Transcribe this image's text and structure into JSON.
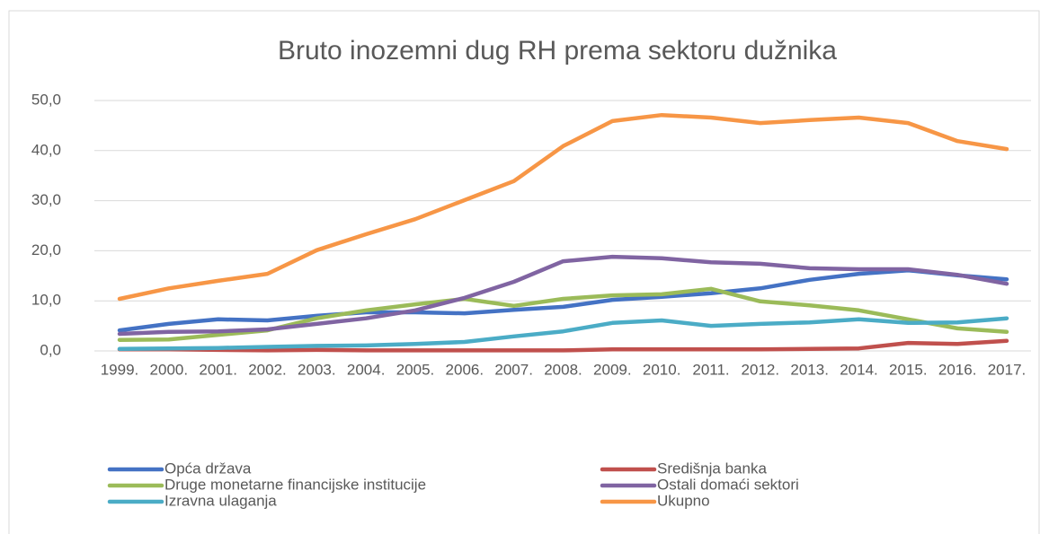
{
  "chart_data": {
    "type": "line",
    "title": "Bruto inozemni dug RH prema sektoru dužnika",
    "categories": [
      "1999.",
      "2000.",
      "2001.",
      "2002.",
      "2003.",
      "2004.",
      "2005.",
      "2006.",
      "2007.",
      "2008.",
      "2009.",
      "2010.",
      "2011.",
      "2012.",
      "2013.",
      "2014.",
      "2015.",
      "2016.",
      "2017."
    ],
    "ylim": [
      0,
      50
    ],
    "yticks": [
      {
        "value": 0,
        "label": "0,0"
      },
      {
        "value": 10,
        "label": "10,0"
      },
      {
        "value": 20,
        "label": "20,0"
      },
      {
        "value": 30,
        "label": "30,0"
      },
      {
        "value": 40,
        "label": "40,0"
      },
      {
        "value": 50,
        "label": "50,0"
      }
    ],
    "grid": true,
    "legend": "bottom",
    "series": [
      {
        "name": "Opća država",
        "color": "#4472c4",
        "values": [
          4.1,
          5.4,
          6.3,
          6.1,
          7.0,
          7.7,
          7.7,
          7.5,
          8.2,
          8.8,
          10.2,
          10.8,
          11.5,
          12.5,
          14.2,
          15.4,
          16.1,
          15.1,
          14.3
        ]
      },
      {
        "name": "Središnja banka",
        "color": "#c0504d",
        "values": [
          0.3,
          0.3,
          0.2,
          0.1,
          0.2,
          0.1,
          0.1,
          0.1,
          0.1,
          0.1,
          0.3,
          0.3,
          0.3,
          0.3,
          0.4,
          0.5,
          1.6,
          1.4,
          2.0
        ]
      },
      {
        "name": "Druge monetarne financijske institucije",
        "color": "#9bbb59",
        "values": [
          2.2,
          2.3,
          3.2,
          4.1,
          6.5,
          8.1,
          9.3,
          10.4,
          9.0,
          10.4,
          11.1,
          11.3,
          12.4,
          9.9,
          9.1,
          8.1,
          6.3,
          4.5,
          3.8
        ]
      },
      {
        "name": "Ostali domaći sektori",
        "color": "#8064a2",
        "values": [
          3.4,
          3.8,
          3.9,
          4.3,
          5.4,
          6.5,
          8.1,
          10.6,
          13.8,
          17.9,
          18.8,
          18.5,
          17.7,
          17.4,
          16.5,
          16.3,
          16.3,
          15.2,
          13.4
        ]
      },
      {
        "name": "Izravna ulaganja",
        "color": "#4bacc6",
        "values": [
          0.4,
          0.5,
          0.6,
          0.8,
          1.0,
          1.1,
          1.4,
          1.8,
          2.9,
          3.9,
          5.6,
          6.1,
          5.0,
          5.4,
          5.7,
          6.3,
          5.6,
          5.7,
          6.5
        ]
      },
      {
        "name": "Ukupno",
        "color": "#f79646",
        "values": [
          10.4,
          12.5,
          14.0,
          15.4,
          20.1,
          23.3,
          26.3,
          30.1,
          33.9,
          40.9,
          45.9,
          47.1,
          46.6,
          45.5,
          46.1,
          46.6,
          45.5,
          41.9,
          40.3
        ]
      }
    ]
  }
}
